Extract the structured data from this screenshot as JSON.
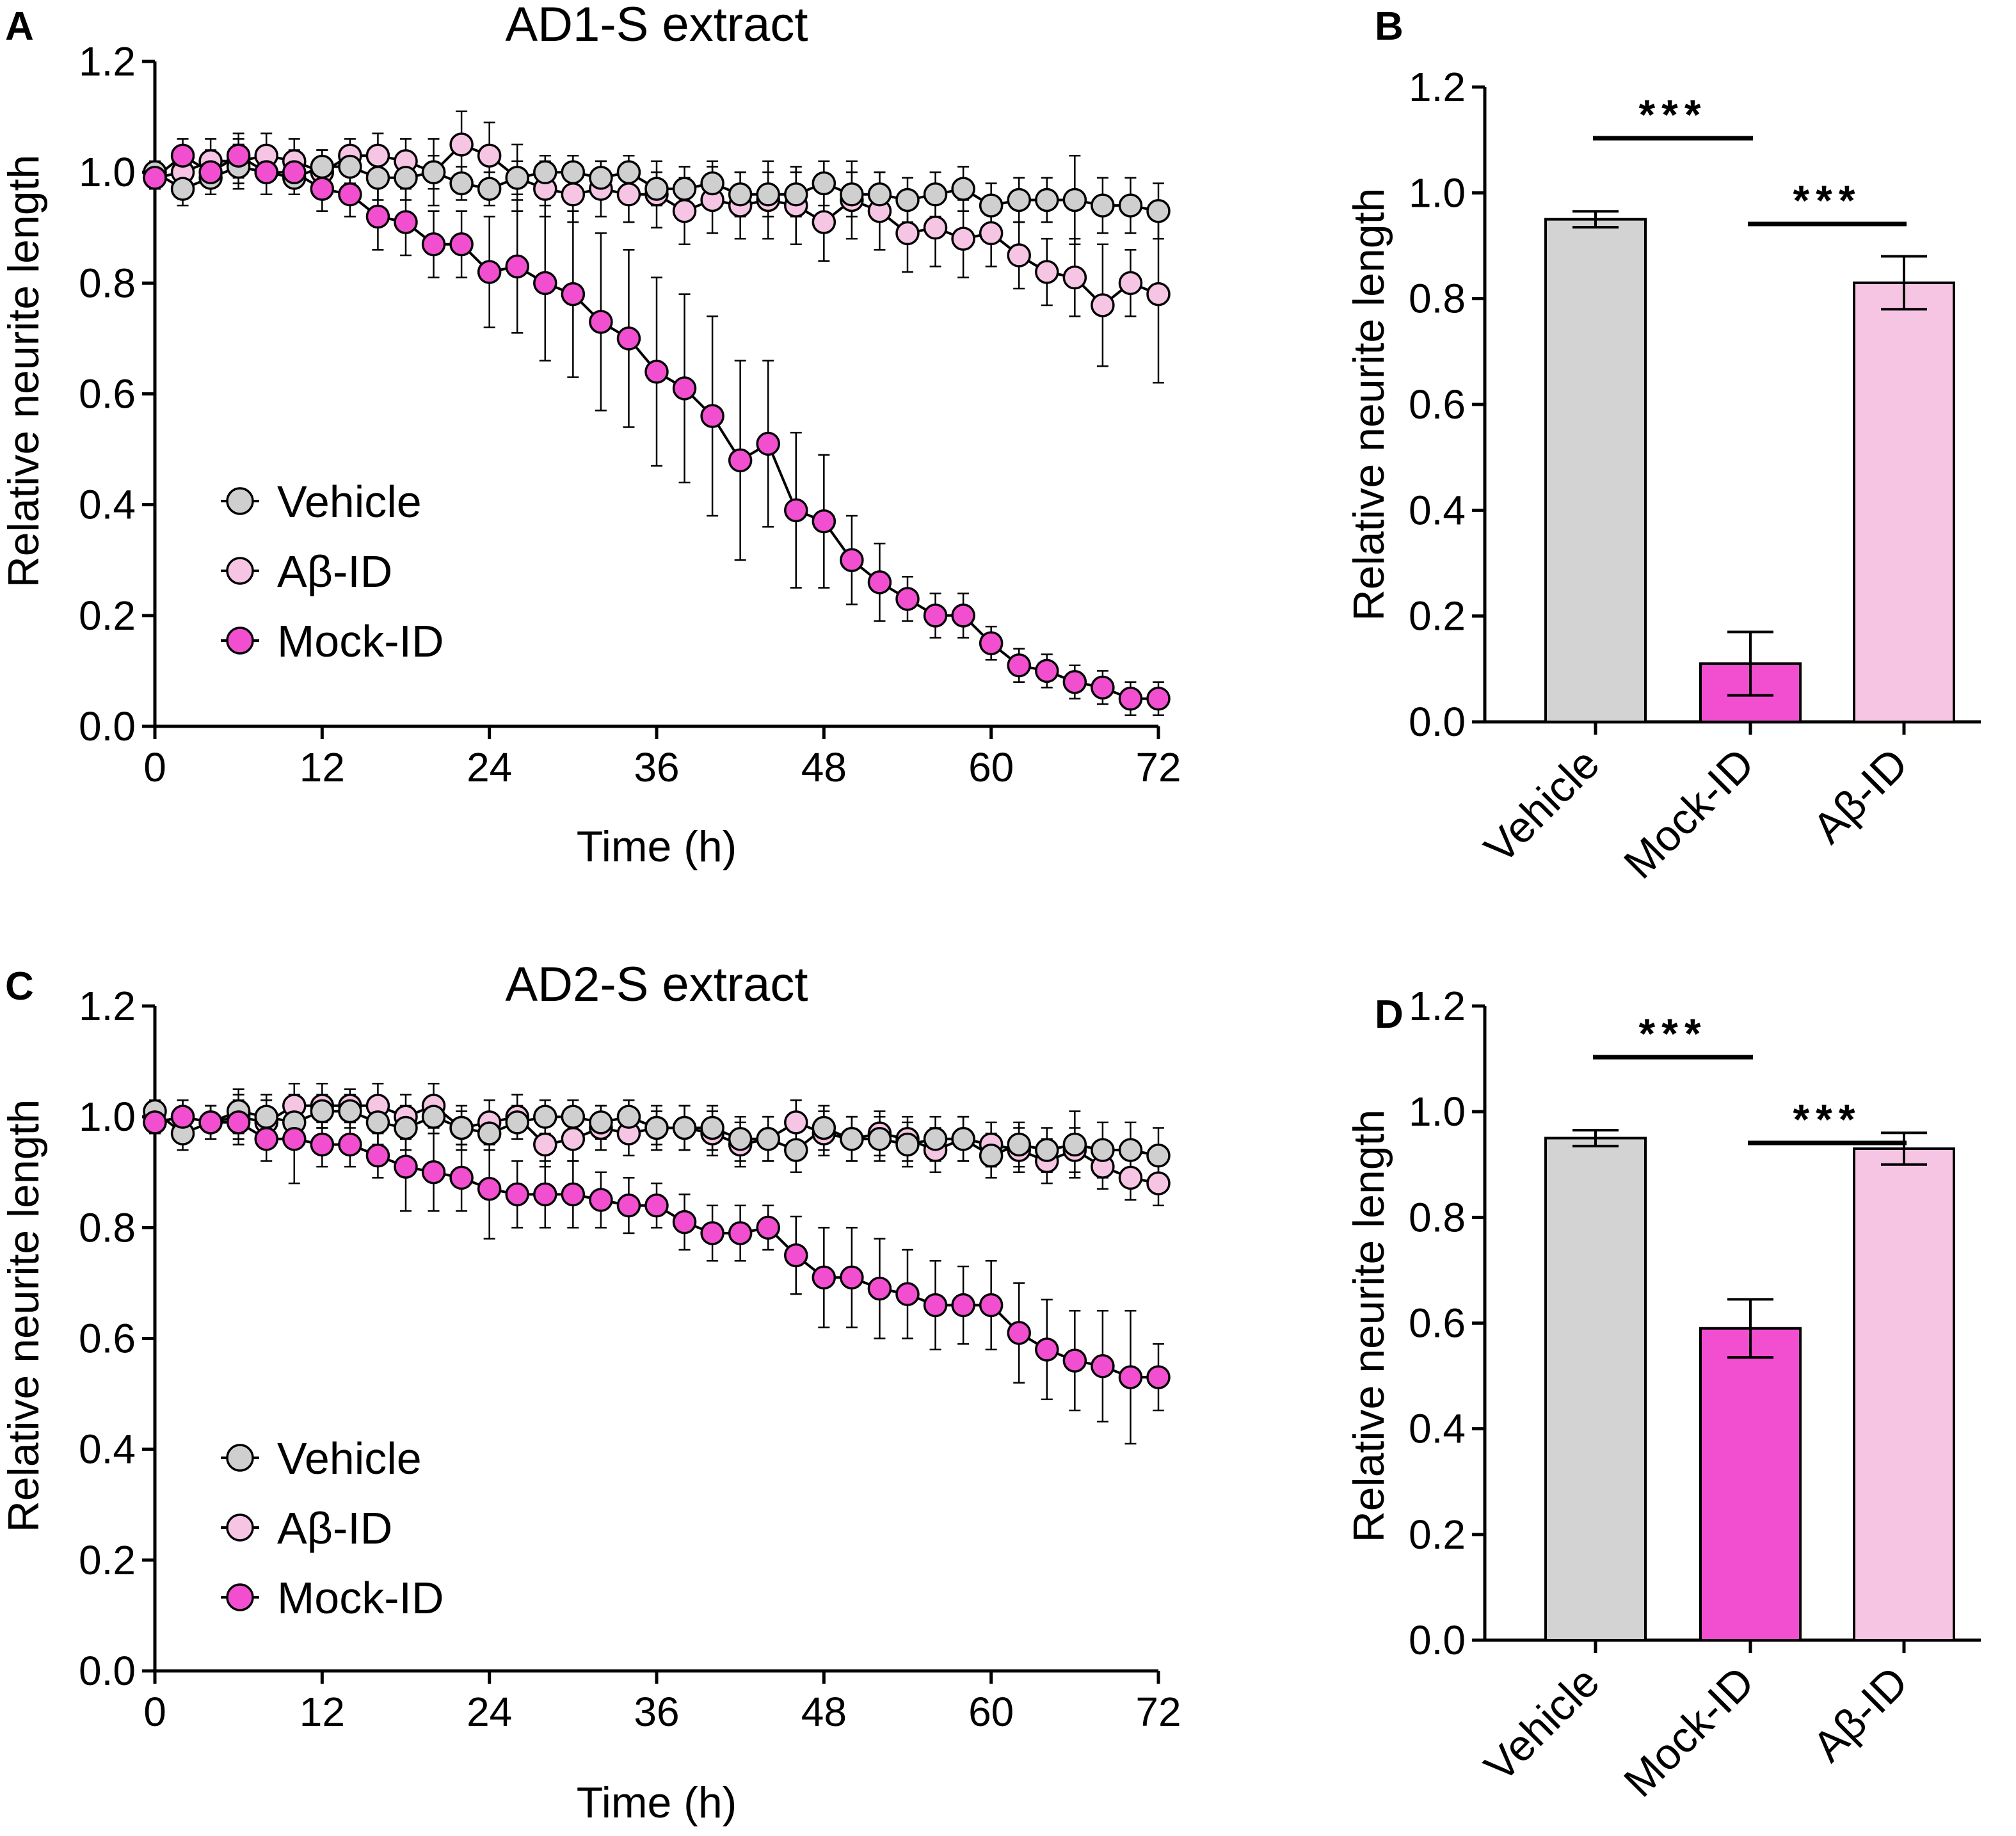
{
  "chart_data": [
    {
      "panel": "A",
      "type": "line",
      "title": "AD1-S extract",
      "xlabel": "Time  (h)",
      "ylabel": "Relative neurite length",
      "xlim": [
        0,
        72
      ],
      "ylim": [
        0,
        1.2
      ],
      "xticks": [
        "0",
        "12",
        "24",
        "36",
        "48",
        "60",
        "72"
      ],
      "yticks": [
        "0.0",
        "0.2",
        "0.4",
        "0.6",
        "0.8",
        "1.0",
        "1.2"
      ],
      "legend": [
        "Vehicle",
        "Aβ-ID",
        "Mock-ID"
      ],
      "x": [
        0,
        2,
        4,
        6,
        8,
        10,
        12,
        14,
        16,
        18,
        20,
        22,
        24,
        26,
        28,
        30,
        32,
        34,
        36,
        38,
        40,
        42,
        44,
        46,
        48,
        50,
        52,
        54,
        56,
        58,
        60,
        62,
        64,
        66,
        68,
        70,
        72
      ],
      "series": [
        {
          "name": "Vehicle",
          "color": "#cfcfcf",
          "values": [
            1.0,
            0.97,
            0.99,
            1.01,
            1.0,
            0.99,
            1.01,
            1.01,
            0.99,
            0.99,
            1.0,
            0.98,
            0.97,
            0.99,
            1.0,
            1.0,
            0.99,
            1.0,
            0.97,
            0.97,
            0.98,
            0.96,
            0.96,
            0.96,
            0.98,
            0.96,
            0.96,
            0.95,
            0.96,
            0.97,
            0.94,
            0.95,
            0.95,
            0.95,
            0.94,
            0.94,
            0.93
          ],
          "errors": [
            0.02,
            0.03,
            0.03,
            0.04,
            0.04,
            0.03,
            0.03,
            0.03,
            0.04,
            0.04,
            0.03,
            0.03,
            0.03,
            0.03,
            0.03,
            0.03,
            0.03,
            0.03,
            0.03,
            0.04,
            0.04,
            0.04,
            0.04,
            0.04,
            0.04,
            0.04,
            0.04,
            0.04,
            0.04,
            0.04,
            0.04,
            0.04,
            0.04,
            0.08,
            0.05,
            0.05,
            0.05
          ]
        },
        {
          "name": "Aβ-ID",
          "color": "#f7c5e4",
          "values": [
            0.99,
            1.0,
            1.02,
            1.02,
            1.03,
            1.02,
            1.0,
            1.03,
            1.03,
            1.02,
            1.0,
            1.05,
            1.03,
            0.99,
            0.97,
            0.96,
            0.97,
            0.96,
            0.96,
            0.93,
            0.95,
            0.94,
            0.95,
            0.94,
            0.91,
            0.95,
            0.93,
            0.89,
            0.9,
            0.88,
            0.89,
            0.85,
            0.82,
            0.81,
            0.76,
            0.8,
            0.78
          ],
          "errors": [
            0.02,
            0.03,
            0.04,
            0.04,
            0.04,
            0.04,
            0.04,
            0.03,
            0.04,
            0.04,
            0.06,
            0.06,
            0.06,
            0.06,
            0.05,
            0.05,
            0.05,
            0.05,
            0.06,
            0.06,
            0.06,
            0.06,
            0.07,
            0.07,
            0.07,
            0.07,
            0.07,
            0.07,
            0.07,
            0.07,
            0.06,
            0.06,
            0.06,
            0.07,
            0.11,
            0.06,
            0.16
          ]
        },
        {
          "name": "Mock-ID",
          "color": "#f24fd0",
          "values": [
            0.99,
            1.03,
            1.0,
            1.03,
            1.0,
            1.0,
            0.97,
            0.96,
            0.92,
            0.91,
            0.87,
            0.87,
            0.82,
            0.83,
            0.8,
            0.78,
            0.73,
            0.7,
            0.64,
            0.61,
            0.56,
            0.48,
            0.51,
            0.39,
            0.37,
            0.3,
            0.26,
            0.23,
            0.2,
            0.2,
            0.15,
            0.11,
            0.1,
            0.08,
            0.07,
            0.05,
            0.05
          ],
          "errors": [
            0.02,
            0.03,
            0.04,
            0.04,
            0.04,
            0.04,
            0.04,
            0.04,
            0.06,
            0.06,
            0.06,
            0.06,
            0.1,
            0.12,
            0.14,
            0.15,
            0.16,
            0.16,
            0.17,
            0.17,
            0.18,
            0.18,
            0.15,
            0.14,
            0.12,
            0.08,
            0.07,
            0.04,
            0.04,
            0.04,
            0.03,
            0.03,
            0.03,
            0.03,
            0.03,
            0.03,
            0.03
          ]
        }
      ]
    },
    {
      "panel": "B",
      "type": "bar",
      "ylabel": "Relative neurite length",
      "ylim": [
        0,
        1.2
      ],
      "yticks": [
        "0.0",
        "0.2",
        "0.4",
        "0.6",
        "0.8",
        "1.0",
        "1.2"
      ],
      "categories": [
        "Vehicle",
        "Mock-ID",
        "Aβ-ID"
      ],
      "values": [
        0.95,
        0.11,
        0.83
      ],
      "errors": [
        0.015,
        0.06,
        0.05
      ],
      "colors": [
        "#d3d3d3",
        "#f24fd0",
        "#f7c5e4"
      ],
      "significance": [
        {
          "from": 0,
          "to": 1,
          "label": "***"
        },
        {
          "from": 1,
          "to": 2,
          "label": "***"
        }
      ]
    },
    {
      "panel": "C",
      "type": "line",
      "title": "AD2-S extract",
      "xlabel": "Time  (h)",
      "ylabel": "Relative neurite length",
      "xlim": [
        0,
        72
      ],
      "ylim": [
        0,
        1.2
      ],
      "xticks": [
        "0",
        "12",
        "24",
        "36",
        "48",
        "60",
        "72"
      ],
      "yticks": [
        "0.0",
        "0.2",
        "0.4",
        "0.6",
        "0.8",
        "1.0",
        "1.2"
      ],
      "legend": [
        "Vehicle",
        "Aβ-ID",
        "Mock-ID"
      ],
      "x": [
        0,
        2,
        4,
        6,
        8,
        10,
        12,
        14,
        16,
        18,
        20,
        22,
        24,
        26,
        28,
        30,
        32,
        34,
        36,
        38,
        40,
        42,
        44,
        46,
        48,
        50,
        52,
        54,
        56,
        58,
        60,
        62,
        64,
        66,
        68,
        70,
        72
      ],
      "series": [
        {
          "name": "Vehicle",
          "color": "#cfcfcf",
          "values": [
            1.01,
            0.97,
            0.99,
            1.01,
            1.0,
            0.99,
            1.01,
            1.01,
            0.99,
            0.98,
            1.0,
            0.98,
            0.97,
            0.99,
            1.0,
            1.0,
            0.99,
            1.0,
            0.98,
            0.98,
            0.98,
            0.96,
            0.96,
            0.94,
            0.98,
            0.96,
            0.96,
            0.95,
            0.96,
            0.96,
            0.93,
            0.95,
            0.94,
            0.95,
            0.94,
            0.94,
            0.93
          ],
          "errors": [
            0.02,
            0.03,
            0.03,
            0.04,
            0.04,
            0.03,
            0.03,
            0.03,
            0.04,
            0.04,
            0.03,
            0.03,
            0.03,
            0.03,
            0.03,
            0.03,
            0.03,
            0.03,
            0.03,
            0.04,
            0.04,
            0.04,
            0.04,
            0.04,
            0.04,
            0.04,
            0.04,
            0.04,
            0.04,
            0.04,
            0.04,
            0.04,
            0.04,
            0.06,
            0.05,
            0.05,
            0.05
          ]
        },
        {
          "name": "Aβ-ID",
          "color": "#f7c5e4",
          "values": [
            0.99,
            1.0,
            0.99,
            1.0,
            0.99,
            1.02,
            1.02,
            1.02,
            1.02,
            1.0,
            1.02,
            0.98,
            0.99,
            1.0,
            0.95,
            0.96,
            0.98,
            0.97,
            0.98,
            0.98,
            0.97,
            0.95,
            0.96,
            0.99,
            0.97,
            0.96,
            0.97,
            0.96,
            0.94,
            0.96,
            0.95,
            0.94,
            0.92,
            0.94,
            0.91,
            0.89,
            0.88
          ],
          "errors": [
            0.02,
            0.03,
            0.03,
            0.04,
            0.04,
            0.04,
            0.04,
            0.03,
            0.04,
            0.04,
            0.04,
            0.04,
            0.04,
            0.04,
            0.04,
            0.04,
            0.04,
            0.04,
            0.04,
            0.04,
            0.04,
            0.04,
            0.04,
            0.04,
            0.04,
            0.04,
            0.04,
            0.04,
            0.04,
            0.04,
            0.04,
            0.04,
            0.04,
            0.04,
            0.04,
            0.04,
            0.04
          ]
        },
        {
          "name": "Mock-ID",
          "color": "#f24fd0",
          "values": [
            0.99,
            1.0,
            0.99,
            0.99,
            0.96,
            0.96,
            0.95,
            0.95,
            0.93,
            0.91,
            0.9,
            0.89,
            0.87,
            0.86,
            0.86,
            0.86,
            0.85,
            0.84,
            0.84,
            0.81,
            0.79,
            0.79,
            0.8,
            0.75,
            0.71,
            0.71,
            0.69,
            0.68,
            0.66,
            0.66,
            0.66,
            0.61,
            0.58,
            0.56,
            0.55,
            0.53,
            0.53
          ],
          "errors": [
            0.02,
            0.03,
            0.03,
            0.04,
            0.04,
            0.08,
            0.04,
            0.04,
            0.04,
            0.08,
            0.07,
            0.06,
            0.09,
            0.06,
            0.06,
            0.06,
            0.05,
            0.05,
            0.04,
            0.05,
            0.05,
            0.05,
            0.04,
            0.07,
            0.09,
            0.09,
            0.09,
            0.08,
            0.08,
            0.07,
            0.08,
            0.09,
            0.09,
            0.09,
            0.1,
            0.12,
            0.06
          ]
        }
      ]
    },
    {
      "panel": "D",
      "type": "bar",
      "ylabel": "Relative neurite length",
      "ylim": [
        0,
        1.2
      ],
      "yticks": [
        "0.0",
        "0.2",
        "0.4",
        "0.6",
        "0.8",
        "1.0",
        "1.2"
      ],
      "categories": [
        "Vehicle",
        "Mock-ID",
        "Aβ-ID"
      ],
      "values": [
        0.95,
        0.59,
        0.93
      ],
      "errors": [
        0.015,
        0.055,
        0.03
      ],
      "colors": [
        "#d3d3d3",
        "#f24fd0",
        "#f7c5e4"
      ],
      "significance": [
        {
          "from": 0,
          "to": 1,
          "label": "***"
        },
        {
          "from": 1,
          "to": 2,
          "label": "***"
        }
      ]
    }
  ]
}
